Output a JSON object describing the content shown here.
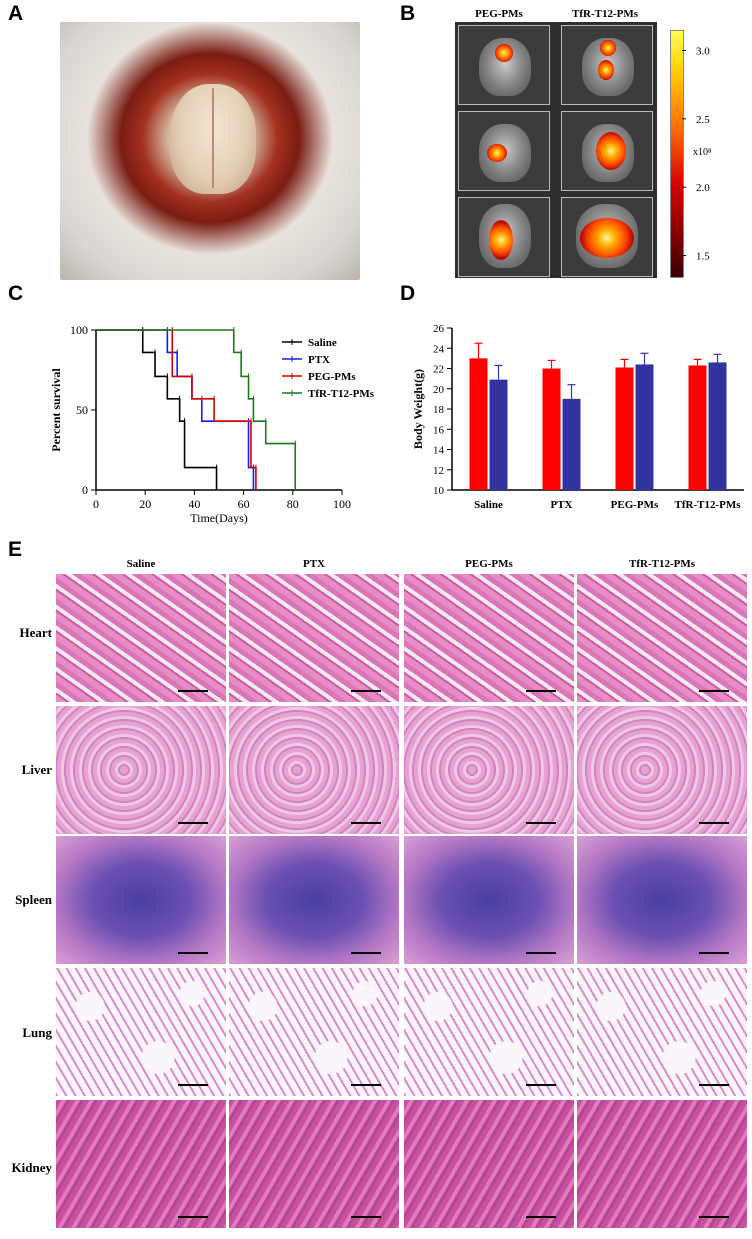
{
  "panels": {
    "A": "A",
    "B": "B",
    "C": "C",
    "D": "D",
    "E": "E"
  },
  "panel_b": {
    "columns": [
      "PEG-PMs",
      "TfR-T12-PMs"
    ],
    "colorbar": {
      "ticks": [
        "3.0",
        "2.5",
        "2.0",
        "1.5"
      ],
      "unit": "x10⁸",
      "tick_values": [
        3.0,
        2.5,
        2.0,
        1.5
      ],
      "range": [
        1.35,
        3.15
      ]
    }
  },
  "chart_data": [
    {
      "type": "line",
      "panel": "C",
      "xlabel": "Time(Days)",
      "ylabel": "Percent survival",
      "xlim": [
        0,
        100
      ],
      "ylim": [
        0,
        100
      ],
      "xticks": [
        0,
        20,
        40,
        60,
        80,
        100
      ],
      "yticks": [
        0,
        50,
        100
      ],
      "legend_position": "right",
      "series": [
        {
          "name": "Saline",
          "color": "#000000",
          "x": [
            0,
            19,
            19,
            24,
            24,
            29,
            29,
            34,
            34,
            36,
            36,
            49,
            49
          ],
          "y": [
            100,
            100,
            86,
            86,
            71,
            71,
            57,
            57,
            43,
            43,
            14,
            14,
            0
          ]
        },
        {
          "name": "PTX",
          "color": "#1a1aff",
          "x": [
            0,
            29,
            29,
            33,
            33,
            39,
            39,
            43,
            43,
            62,
            62,
            64,
            64
          ],
          "y": [
            100,
            100,
            86,
            86,
            71,
            71,
            57,
            57,
            43,
            43,
            14,
            14,
            0
          ]
        },
        {
          "name": "PEG-PMs",
          "color": "#d40000",
          "x": [
            0,
            31,
            31,
            39,
            39,
            48,
            48,
            63,
            63,
            65,
            65
          ],
          "y": [
            100,
            100,
            71,
            71,
            57,
            57,
            43,
            43,
            14,
            14,
            0
          ]
        },
        {
          "name": "TfR-T12-PMs",
          "color": "#1a7a1a",
          "x": [
            0,
            56,
            56,
            59,
            59,
            62,
            62,
            64,
            64,
            69,
            69,
            81,
            81
          ],
          "y": [
            100,
            100,
            86,
            86,
            71,
            71,
            57,
            57,
            43,
            43,
            29,
            29,
            0
          ]
        }
      ]
    },
    {
      "type": "bar",
      "panel": "D",
      "ylabel": "Body Weight(g)",
      "ylim": [
        10,
        26
      ],
      "yticks": [
        10,
        12,
        14,
        16,
        18,
        20,
        22,
        24,
        26
      ],
      "categories": [
        "Saline",
        "PTX",
        "PEG-PMs",
        "TfR-T12-PMs"
      ],
      "series": [
        {
          "color": "#ff0000",
          "values": [
            23.0,
            22.0,
            22.1,
            22.3
          ],
          "errors": [
            1.5,
            0.8,
            0.8,
            0.6
          ]
        },
        {
          "color": "#3232a0",
          "values": [
            20.9,
            19.0,
            22.4,
            22.6
          ],
          "errors": [
            1.4,
            1.4,
            1.1,
            0.8
          ]
        }
      ]
    }
  ],
  "histology": {
    "columns": [
      "Saline",
      "PTX",
      "PEG-PMs",
      "TfR-T12-PMs"
    ],
    "rows": [
      "Heart",
      "Liver",
      "Spleen",
      "Lung",
      "Kidney"
    ]
  }
}
